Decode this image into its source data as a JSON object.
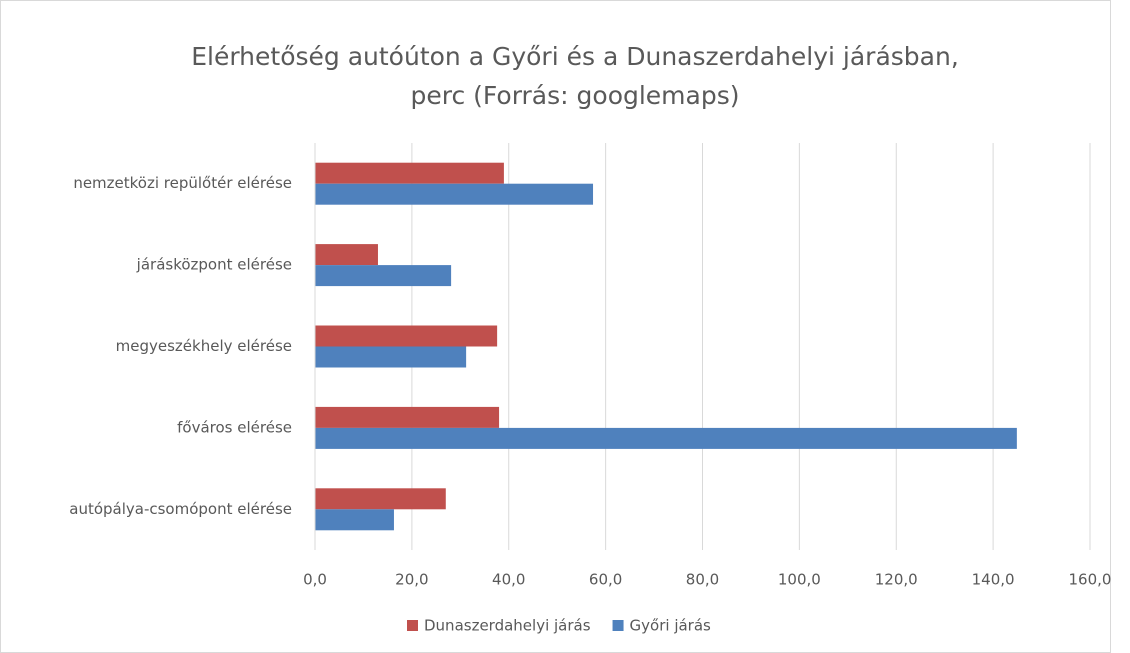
{
  "chart_data": {
    "type": "bar",
    "orientation": "horizontal",
    "title": [
      "Elérhetőség autóúton a Győri és a Dunaszerdahelyi járásban,",
      "perc (Forrás: googlemaps)"
    ],
    "categories": [
      "nemzetközi repülőtér elérése",
      "járásközpont elérése",
      "megyeszékhely elérése",
      "főváros elérése",
      "autópálya-csomópont elérése"
    ],
    "series": [
      {
        "name": "Dunaszerdahelyi járás",
        "color": "#c0504d",
        "values": [
          39.0,
          13.0,
          37.6,
          38.0,
          27.0
        ]
      },
      {
        "name": "Győri járás",
        "color": "#4f81bd",
        "values": [
          57.4,
          28.1,
          31.2,
          144.9,
          16.3
        ]
      }
    ],
    "xlim": [
      0,
      160
    ],
    "xticks": [
      {
        "value": 0,
        "label": "0,0"
      },
      {
        "value": 20,
        "label": "20,0"
      },
      {
        "value": 40,
        "label": "40,0"
      },
      {
        "value": 60,
        "label": "60,0"
      },
      {
        "value": 80,
        "label": "80,0"
      },
      {
        "value": 100,
        "label": "100,0"
      },
      {
        "value": 120,
        "label": "120,0"
      },
      {
        "value": 140,
        "label": "140,0"
      },
      {
        "value": 160,
        "label": "160,0"
      }
    ],
    "grid": true,
    "legend": "bottom"
  }
}
